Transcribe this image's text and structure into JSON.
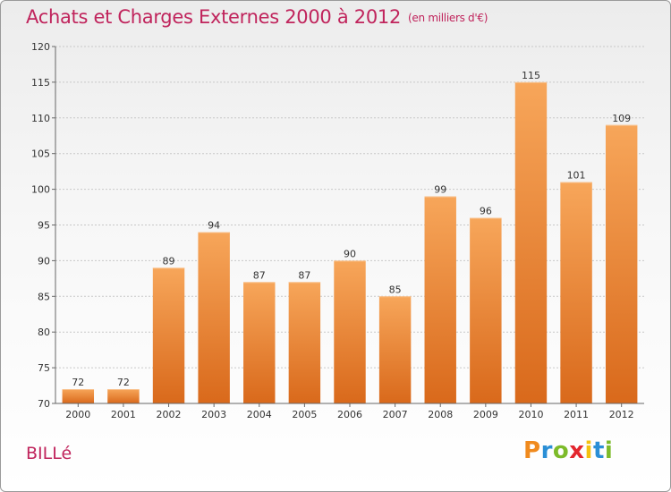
{
  "header": {
    "title": "Achats et Charges Externes 2000 à 2012",
    "subtitle": "(en milliers d'€)"
  },
  "footer": {
    "commune": "BILLé",
    "logo": [
      "P",
      "r",
      "o",
      "x",
      "i",
      "t",
      "i"
    ],
    "logo_colors": [
      "#f08a1e",
      "#2b8fd6",
      "#7dbb2a",
      "#e3262e",
      "#f4c10f",
      "#2b8fd6",
      "#7dbb2a"
    ]
  },
  "colors": {
    "title": "#c0245c",
    "bar_top": "#f7a65a",
    "bar_bottom": "#d9691b",
    "grid": "#c8c8c8",
    "axis": "#666666"
  },
  "chart_data": {
    "type": "bar",
    "title": "Achats et Charges Externes 2000 à 2012",
    "subtitle": "(en milliers d'€)",
    "categories": [
      "2000",
      "2001",
      "2002",
      "2003",
      "2004",
      "2005",
      "2006",
      "2007",
      "2008",
      "2009",
      "2010",
      "2011",
      "2012"
    ],
    "values": [
      72,
      72,
      89,
      94,
      87,
      87,
      90,
      85,
      99,
      96,
      115,
      101,
      109
    ],
    "ylim": [
      70,
      120
    ],
    "yticks": [
      70,
      75,
      80,
      85,
      90,
      95,
      100,
      105,
      110,
      115,
      120
    ],
    "grid": true,
    "xlabel": "",
    "ylabel": ""
  }
}
